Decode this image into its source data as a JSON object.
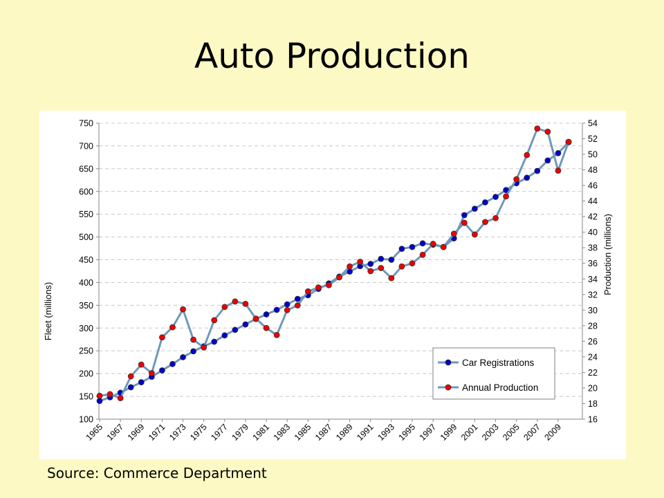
{
  "slide": {
    "title": "Auto Production",
    "source": "Source: Commerce Department"
  },
  "chart_data": {
    "type": "line",
    "x": [
      1965,
      1966,
      1967,
      1968,
      1969,
      1970,
      1971,
      1972,
      1973,
      1974,
      1975,
      1976,
      1977,
      1978,
      1979,
      1980,
      1981,
      1982,
      1983,
      1984,
      1985,
      1986,
      1987,
      1988,
      1989,
      1990,
      1991,
      1992,
      1993,
      1994,
      1995,
      1996,
      1997,
      1998,
      1999,
      2000,
      2001,
      2002,
      2003,
      2004,
      2005,
      2006,
      2007,
      2008,
      2009,
      2010
    ],
    "x_tick_labels": [
      "1965",
      "1967",
      "1969",
      "1971",
      "1973",
      "1975",
      "1977",
      "1979",
      "1981",
      "1983",
      "1985",
      "1987",
      "1989",
      "1991",
      "1993",
      "1995",
      "1997",
      "1999",
      "2001",
      "2003",
      "2005",
      "2007",
      "2009"
    ],
    "ylabel_left": "Fleet (millions)",
    "ylabel_right": "Production (millions)",
    "ylim_left": [
      100,
      750
    ],
    "ylim_right": [
      16,
      54
    ],
    "y_ticks_left": [
      100,
      150,
      200,
      250,
      300,
      350,
      400,
      450,
      500,
      550,
      600,
      650,
      700,
      750
    ],
    "y_ticks_right": [
      16,
      18,
      20,
      22,
      24,
      26,
      28,
      30,
      32,
      34,
      36,
      38,
      40,
      42,
      44,
      46,
      48,
      50,
      52,
      54
    ],
    "grid": "horizontal dashed",
    "legend_position": "bottom-right",
    "series": [
      {
        "name": "Car Registrations",
        "axis": "left",
        "color": "#0000cc",
        "values": [
          140,
          148,
          158,
          170,
          181,
          193,
          207,
          221,
          236,
          249,
          260,
          270,
          284,
          296,
          308,
          320,
          330,
          340,
          352,
          364,
          372,
          386,
          398,
          413,
          424,
          436,
          441,
          452,
          450,
          474,
          478,
          486,
          483,
          478,
          497,
          548,
          562,
          576,
          588,
          603,
          618,
          630,
          645,
          668,
          684,
          708
        ]
      },
      {
        "name": "Annual Production",
        "axis": "right",
        "color": "#ee0000",
        "values": [
          19.0,
          19.2,
          18.7,
          21.5,
          23.0,
          21.9,
          26.5,
          27.8,
          30.1,
          26.2,
          25.2,
          28.7,
          30.4,
          31.1,
          30.8,
          28.9,
          27.7,
          26.8,
          30.0,
          30.6,
          32.4,
          32.9,
          33.2,
          34.2,
          35.6,
          36.2,
          35.0,
          35.4,
          34.1,
          35.6,
          36.0,
          37.1,
          38.5,
          38.1,
          39.8,
          41.2,
          39.7,
          41.3,
          41.8,
          44.6,
          46.8,
          49.9,
          53.3,
          52.9,
          47.9,
          51.6
        ]
      }
    ]
  }
}
